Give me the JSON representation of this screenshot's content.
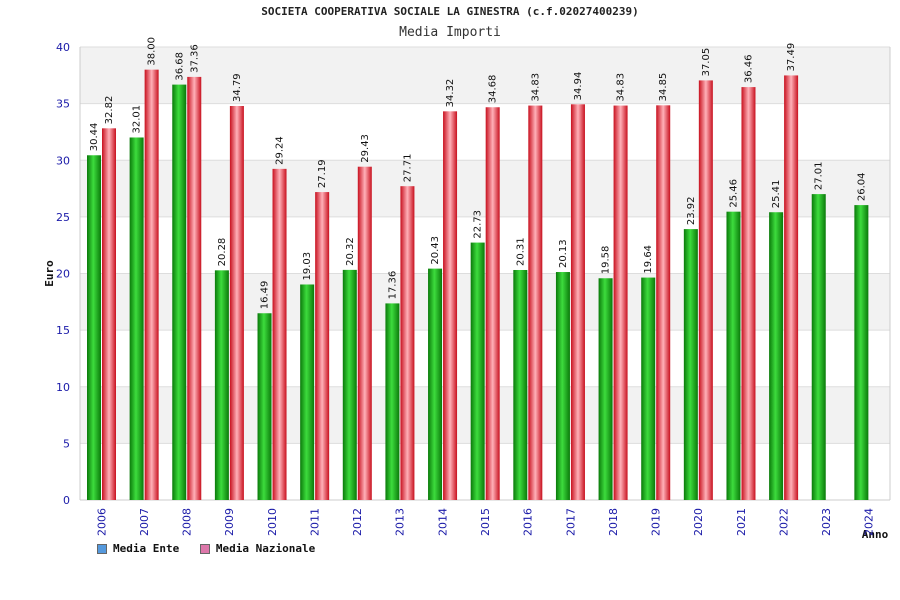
{
  "chart_data": {
    "type": "bar",
    "title": "SOCIETA COOPERATIVA SOCIALE LA GINESTRA (c.f.02027400239)",
    "subtitle": "Media Importi",
    "xlabel": "Anno",
    "ylabel": "Euro",
    "ylim": [
      0,
      40
    ],
    "yticks": [
      "0",
      "5",
      "10",
      "15",
      "20",
      "25",
      "30",
      "35",
      "40"
    ],
    "categories": [
      "2006",
      "2007",
      "2008",
      "2009",
      "2010",
      "2011",
      "2012",
      "2013",
      "2014",
      "2015",
      "2016",
      "2017",
      "2018",
      "2019",
      "2020",
      "2021",
      "2022",
      "2023",
      "2024"
    ],
    "series": [
      {
        "name": "Media Ente",
        "color": "#22bb22",
        "legend_color": "#5599dd",
        "values": [
          30.44,
          32.01,
          36.68,
          20.28,
          16.49,
          19.03,
          20.32,
          17.36,
          20.43,
          22.73,
          20.31,
          20.13,
          19.58,
          19.64,
          23.92,
          25.46,
          25.41,
          27.01,
          26.04
        ],
        "labels": [
          "30.44",
          "32.01",
          "36.68",
          "20.28",
          "16.49",
          "19.03",
          "20.32",
          "17.36",
          "20.43",
          "22.73",
          "20.31",
          "20.13",
          "19.58",
          "19.64",
          "23.92",
          "25.46",
          "25.41",
          "27.01",
          "26.04"
        ]
      },
      {
        "name": "Media Nazionale",
        "color": "#ee3344",
        "legend_color": "#dd77aa",
        "values": [
          32.82,
          38.0,
          37.36,
          34.79,
          29.24,
          27.19,
          29.43,
          27.71,
          34.32,
          34.68,
          34.83,
          34.94,
          34.83,
          34.85,
          37.05,
          36.46,
          37.49,
          null,
          null
        ],
        "labels": [
          "32.82",
          "38.00",
          "37.36",
          "34.79",
          "29.24",
          "27.19",
          "29.43",
          "27.71",
          "34.32",
          "34.68",
          "34.83",
          "34.94",
          "34.83",
          "34.85",
          "37.05",
          "36.46",
          "37.49",
          null,
          null
        ]
      }
    ],
    "grid": true,
    "legend_position": "bottom-left"
  }
}
